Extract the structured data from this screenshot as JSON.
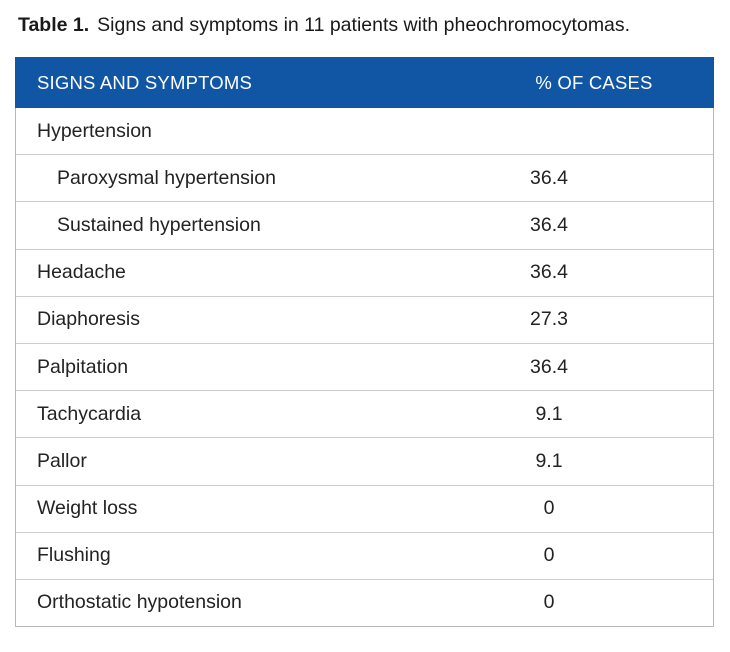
{
  "caption": {
    "label": "Table 1.",
    "text": "Signs and symptoms in 11 patients with pheochromocytomas."
  },
  "table": {
    "header": {
      "col1": "SIGNS AND SYMPTOMS",
      "col2": "% OF CASES"
    },
    "rows": [
      {
        "label": "Hypertension",
        "value": "",
        "indent": false
      },
      {
        "label": "Paroxysmal hypertension",
        "value": "36.4",
        "indent": true
      },
      {
        "label": "Sustained hypertension",
        "value": "36.4",
        "indent": true
      },
      {
        "label": "Headache",
        "value": "36.4",
        "indent": false
      },
      {
        "label": "Diaphoresis",
        "value": "27.3",
        "indent": false
      },
      {
        "label": "Palpitation",
        "value": "36.4",
        "indent": false
      },
      {
        "label": "Tachycardia",
        "value": "9.1",
        "indent": false
      },
      {
        "label": "Pallor",
        "value": "9.1",
        "indent": false
      },
      {
        "label": "Weight loss",
        "value": "0",
        "indent": false
      },
      {
        "label": "Flushing",
        "value": "0",
        "indent": false
      },
      {
        "label": "Orthostatic hypotension",
        "value": "0",
        "indent": false
      }
    ]
  },
  "colors": {
    "header_bg": "#1156a4",
    "header_text": "#ffffff",
    "divider": "#cdcdcd",
    "border": "#b8b8b8",
    "text": "#232323",
    "page_bg": "#ffffff"
  }
}
